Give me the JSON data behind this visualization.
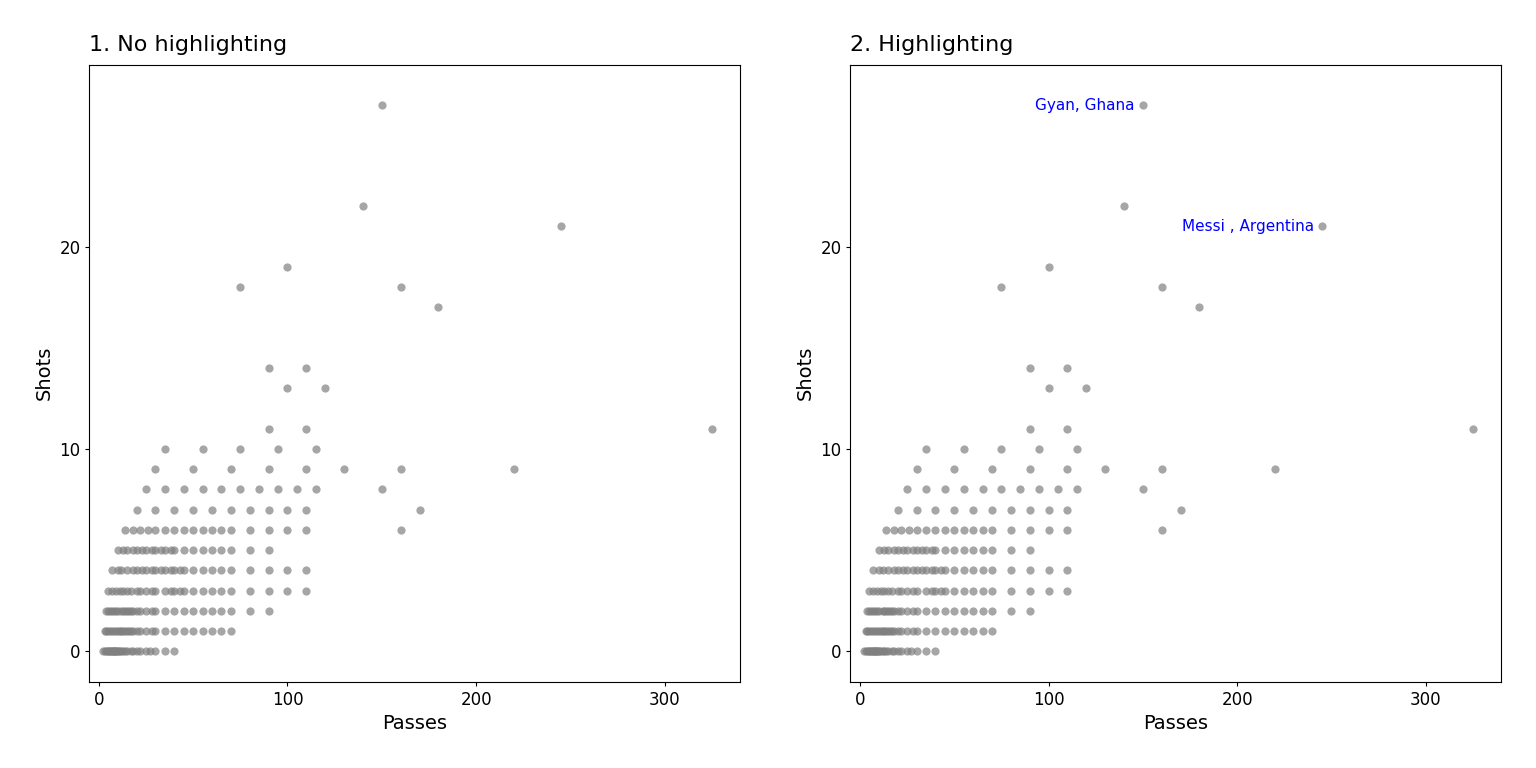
{
  "title1": "1. No highlighting",
  "title2": "2. Highlighting",
  "xlabel": "Passes",
  "ylabel": "Shots",
  "xlim": [
    -5,
    340
  ],
  "ylim": [
    -1.5,
    29
  ],
  "xticks": [
    0,
    100,
    200,
    300
  ],
  "yticks": [
    0,
    10,
    20
  ],
  "background_color": "#ffffff",
  "point_color": "#808080",
  "point_alpha": 0.7,
  "point_size": 35,
  "label_color": "blue",
  "title_fontsize": 16,
  "axis_fontsize": 14,
  "players": [
    {
      "passes": 2,
      "shots": 0
    },
    {
      "passes": 3,
      "shots": 0
    },
    {
      "passes": 4,
      "shots": 0
    },
    {
      "passes": 5,
      "shots": 0
    },
    {
      "passes": 5,
      "shots": 0
    },
    {
      "passes": 6,
      "shots": 0
    },
    {
      "passes": 6,
      "shots": 0
    },
    {
      "passes": 7,
      "shots": 0
    },
    {
      "passes": 7,
      "shots": 0
    },
    {
      "passes": 8,
      "shots": 0
    },
    {
      "passes": 8,
      "shots": 0
    },
    {
      "passes": 8,
      "shots": 0
    },
    {
      "passes": 9,
      "shots": 0
    },
    {
      "passes": 9,
      "shots": 0
    },
    {
      "passes": 10,
      "shots": 0
    },
    {
      "passes": 10,
      "shots": 0
    },
    {
      "passes": 11,
      "shots": 0
    },
    {
      "passes": 12,
      "shots": 0
    },
    {
      "passes": 13,
      "shots": 0
    },
    {
      "passes": 14,
      "shots": 0
    },
    {
      "passes": 15,
      "shots": 0
    },
    {
      "passes": 17,
      "shots": 0
    },
    {
      "passes": 18,
      "shots": 0
    },
    {
      "passes": 20,
      "shots": 0
    },
    {
      "passes": 22,
      "shots": 0
    },
    {
      "passes": 25,
      "shots": 0
    },
    {
      "passes": 27,
      "shots": 0
    },
    {
      "passes": 30,
      "shots": 0
    },
    {
      "passes": 35,
      "shots": 0
    },
    {
      "passes": 40,
      "shots": 0
    },
    {
      "passes": 3,
      "shots": 1
    },
    {
      "passes": 4,
      "shots": 1
    },
    {
      "passes": 5,
      "shots": 1
    },
    {
      "passes": 6,
      "shots": 1
    },
    {
      "passes": 7,
      "shots": 1
    },
    {
      "passes": 8,
      "shots": 1
    },
    {
      "passes": 9,
      "shots": 1
    },
    {
      "passes": 10,
      "shots": 1
    },
    {
      "passes": 11,
      "shots": 1
    },
    {
      "passes": 12,
      "shots": 1
    },
    {
      "passes": 13,
      "shots": 1
    },
    {
      "passes": 14,
      "shots": 1
    },
    {
      "passes": 15,
      "shots": 1
    },
    {
      "passes": 16,
      "shots": 1
    },
    {
      "passes": 17,
      "shots": 1
    },
    {
      "passes": 18,
      "shots": 1
    },
    {
      "passes": 20,
      "shots": 1
    },
    {
      "passes": 22,
      "shots": 1
    },
    {
      "passes": 25,
      "shots": 1
    },
    {
      "passes": 28,
      "shots": 1
    },
    {
      "passes": 30,
      "shots": 1
    },
    {
      "passes": 35,
      "shots": 1
    },
    {
      "passes": 40,
      "shots": 1
    },
    {
      "passes": 45,
      "shots": 1
    },
    {
      "passes": 50,
      "shots": 1
    },
    {
      "passes": 55,
      "shots": 1
    },
    {
      "passes": 60,
      "shots": 1
    },
    {
      "passes": 65,
      "shots": 1
    },
    {
      "passes": 70,
      "shots": 1
    },
    {
      "passes": 4,
      "shots": 2
    },
    {
      "passes": 5,
      "shots": 2
    },
    {
      "passes": 6,
      "shots": 2
    },
    {
      "passes": 7,
      "shots": 2
    },
    {
      "passes": 8,
      "shots": 2
    },
    {
      "passes": 9,
      "shots": 2
    },
    {
      "passes": 10,
      "shots": 2
    },
    {
      "passes": 12,
      "shots": 2
    },
    {
      "passes": 13,
      "shots": 2
    },
    {
      "passes": 14,
      "shots": 2
    },
    {
      "passes": 15,
      "shots": 2
    },
    {
      "passes": 16,
      "shots": 2
    },
    {
      "passes": 17,
      "shots": 2
    },
    {
      "passes": 18,
      "shots": 2
    },
    {
      "passes": 20,
      "shots": 2
    },
    {
      "passes": 22,
      "shots": 2
    },
    {
      "passes": 25,
      "shots": 2
    },
    {
      "passes": 28,
      "shots": 2
    },
    {
      "passes": 30,
      "shots": 2
    },
    {
      "passes": 35,
      "shots": 2
    },
    {
      "passes": 40,
      "shots": 2
    },
    {
      "passes": 45,
      "shots": 2
    },
    {
      "passes": 50,
      "shots": 2
    },
    {
      "passes": 55,
      "shots": 2
    },
    {
      "passes": 60,
      "shots": 2
    },
    {
      "passes": 65,
      "shots": 2
    },
    {
      "passes": 70,
      "shots": 2
    },
    {
      "passes": 80,
      "shots": 2
    },
    {
      "passes": 90,
      "shots": 2
    },
    {
      "passes": 5,
      "shots": 3
    },
    {
      "passes": 7,
      "shots": 3
    },
    {
      "passes": 9,
      "shots": 3
    },
    {
      "passes": 11,
      "shots": 3
    },
    {
      "passes": 13,
      "shots": 3
    },
    {
      "passes": 15,
      "shots": 3
    },
    {
      "passes": 17,
      "shots": 3
    },
    {
      "passes": 20,
      "shots": 3
    },
    {
      "passes": 22,
      "shots": 3
    },
    {
      "passes": 25,
      "shots": 3
    },
    {
      "passes": 28,
      "shots": 3
    },
    {
      "passes": 30,
      "shots": 3
    },
    {
      "passes": 35,
      "shots": 3
    },
    {
      "passes": 38,
      "shots": 3
    },
    {
      "passes": 40,
      "shots": 3
    },
    {
      "passes": 43,
      "shots": 3
    },
    {
      "passes": 45,
      "shots": 3
    },
    {
      "passes": 50,
      "shots": 3
    },
    {
      "passes": 55,
      "shots": 3
    },
    {
      "passes": 60,
      "shots": 3
    },
    {
      "passes": 65,
      "shots": 3
    },
    {
      "passes": 70,
      "shots": 3
    },
    {
      "passes": 80,
      "shots": 3
    },
    {
      "passes": 90,
      "shots": 3
    },
    {
      "passes": 100,
      "shots": 3
    },
    {
      "passes": 110,
      "shots": 3
    },
    {
      "passes": 7,
      "shots": 4
    },
    {
      "passes": 10,
      "shots": 4
    },
    {
      "passes": 12,
      "shots": 4
    },
    {
      "passes": 15,
      "shots": 4
    },
    {
      "passes": 18,
      "shots": 4
    },
    {
      "passes": 20,
      "shots": 4
    },
    {
      "passes": 23,
      "shots": 4
    },
    {
      "passes": 25,
      "shots": 4
    },
    {
      "passes": 28,
      "shots": 4
    },
    {
      "passes": 30,
      "shots": 4
    },
    {
      "passes": 33,
      "shots": 4
    },
    {
      "passes": 35,
      "shots": 4
    },
    {
      "passes": 38,
      "shots": 4
    },
    {
      "passes": 40,
      "shots": 4
    },
    {
      "passes": 43,
      "shots": 4
    },
    {
      "passes": 45,
      "shots": 4
    },
    {
      "passes": 50,
      "shots": 4
    },
    {
      "passes": 55,
      "shots": 4
    },
    {
      "passes": 60,
      "shots": 4
    },
    {
      "passes": 65,
      "shots": 4
    },
    {
      "passes": 70,
      "shots": 4
    },
    {
      "passes": 80,
      "shots": 4
    },
    {
      "passes": 90,
      "shots": 4
    },
    {
      "passes": 100,
      "shots": 4
    },
    {
      "passes": 110,
      "shots": 4
    },
    {
      "passes": 10,
      "shots": 5
    },
    {
      "passes": 13,
      "shots": 5
    },
    {
      "passes": 15,
      "shots": 5
    },
    {
      "passes": 18,
      "shots": 5
    },
    {
      "passes": 20,
      "shots": 5
    },
    {
      "passes": 23,
      "shots": 5
    },
    {
      "passes": 25,
      "shots": 5
    },
    {
      "passes": 28,
      "shots": 5
    },
    {
      "passes": 30,
      "shots": 5
    },
    {
      "passes": 33,
      "shots": 5
    },
    {
      "passes": 35,
      "shots": 5
    },
    {
      "passes": 38,
      "shots": 5
    },
    {
      "passes": 40,
      "shots": 5
    },
    {
      "passes": 45,
      "shots": 5
    },
    {
      "passes": 50,
      "shots": 5
    },
    {
      "passes": 55,
      "shots": 5
    },
    {
      "passes": 60,
      "shots": 5
    },
    {
      "passes": 65,
      "shots": 5
    },
    {
      "passes": 70,
      "shots": 5
    },
    {
      "passes": 80,
      "shots": 5
    },
    {
      "passes": 90,
      "shots": 5
    },
    {
      "passes": 14,
      "shots": 6
    },
    {
      "passes": 18,
      "shots": 6
    },
    {
      "passes": 22,
      "shots": 6
    },
    {
      "passes": 26,
      "shots": 6
    },
    {
      "passes": 30,
      "shots": 6
    },
    {
      "passes": 35,
      "shots": 6
    },
    {
      "passes": 40,
      "shots": 6
    },
    {
      "passes": 45,
      "shots": 6
    },
    {
      "passes": 50,
      "shots": 6
    },
    {
      "passes": 55,
      "shots": 6
    },
    {
      "passes": 60,
      "shots": 6
    },
    {
      "passes": 65,
      "shots": 6
    },
    {
      "passes": 70,
      "shots": 6
    },
    {
      "passes": 80,
      "shots": 6
    },
    {
      "passes": 90,
      "shots": 6
    },
    {
      "passes": 100,
      "shots": 6
    },
    {
      "passes": 110,
      "shots": 6
    },
    {
      "passes": 160,
      "shots": 6
    },
    {
      "passes": 20,
      "shots": 7
    },
    {
      "passes": 30,
      "shots": 7
    },
    {
      "passes": 40,
      "shots": 7
    },
    {
      "passes": 50,
      "shots": 7
    },
    {
      "passes": 60,
      "shots": 7
    },
    {
      "passes": 70,
      "shots": 7
    },
    {
      "passes": 80,
      "shots": 7
    },
    {
      "passes": 90,
      "shots": 7
    },
    {
      "passes": 100,
      "shots": 7
    },
    {
      "passes": 110,
      "shots": 7
    },
    {
      "passes": 170,
      "shots": 7
    },
    {
      "passes": 25,
      "shots": 8
    },
    {
      "passes": 35,
      "shots": 8
    },
    {
      "passes": 45,
      "shots": 8
    },
    {
      "passes": 55,
      "shots": 8
    },
    {
      "passes": 65,
      "shots": 8
    },
    {
      "passes": 75,
      "shots": 8
    },
    {
      "passes": 85,
      "shots": 8
    },
    {
      "passes": 95,
      "shots": 8
    },
    {
      "passes": 105,
      "shots": 8
    },
    {
      "passes": 115,
      "shots": 8
    },
    {
      "passes": 150,
      "shots": 8
    },
    {
      "passes": 30,
      "shots": 9
    },
    {
      "passes": 50,
      "shots": 9
    },
    {
      "passes": 70,
      "shots": 9
    },
    {
      "passes": 90,
      "shots": 9
    },
    {
      "passes": 110,
      "shots": 9
    },
    {
      "passes": 130,
      "shots": 9
    },
    {
      "passes": 160,
      "shots": 9
    },
    {
      "passes": 220,
      "shots": 9
    },
    {
      "passes": 35,
      "shots": 10
    },
    {
      "passes": 55,
      "shots": 10
    },
    {
      "passes": 75,
      "shots": 10
    },
    {
      "passes": 95,
      "shots": 10
    },
    {
      "passes": 115,
      "shots": 10
    },
    {
      "passes": 90,
      "shots": 11
    },
    {
      "passes": 110,
      "shots": 11
    },
    {
      "passes": 325,
      "shots": 11
    },
    {
      "passes": 100,
      "shots": 13
    },
    {
      "passes": 120,
      "shots": 13
    },
    {
      "passes": 90,
      "shots": 14
    },
    {
      "passes": 110,
      "shots": 14
    },
    {
      "passes": 75,
      "shots": 18
    },
    {
      "passes": 100,
      "shots": 19
    },
    {
      "passes": 160,
      "shots": 18
    },
    {
      "passes": 180,
      "shots": 17
    },
    {
      "passes": 140,
      "shots": 22
    },
    {
      "passes": 245,
      "shots": 21
    },
    {
      "passes": 150,
      "shots": 27
    }
  ],
  "highlighted": [
    {
      "passes": 150,
      "shots": 27,
      "label": "Gyan, Ghana"
    },
    {
      "passes": 245,
      "shots": 21,
      "label": "Messi , Argentina"
    }
  ]
}
